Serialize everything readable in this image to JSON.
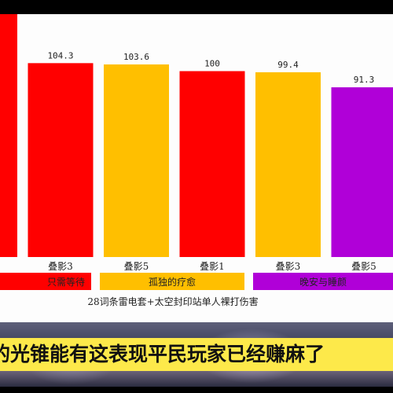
{
  "chart_data": {
    "type": "bar",
    "ylim": [
      0,
      120
    ],
    "bars": [
      {
        "category": "",
        "value": null,
        "color": "#ff0000"
      },
      {
        "category": "叠影3",
        "value": 104.3,
        "color": "#ff0000"
      },
      {
        "category": "叠影5",
        "value": 103.6,
        "color": "#ffbf00"
      },
      {
        "category": "叠影1",
        "value": 100,
        "color": "#ff0000"
      },
      {
        "category": "叠影3",
        "value": 99.4,
        "color": "#ffbf00"
      },
      {
        "category": "叠影5",
        "value": 91.3,
        "color": "#b000d8"
      }
    ],
    "groups": [
      {
        "label": "只需等待",
        "color": "#ff0000"
      },
      {
        "label": "孤独的疗愈",
        "color": "#ffbf00"
      },
      {
        "label": "晚安与睡颜",
        "color": "#b000d8"
      }
    ],
    "footnote": "28词条雷电套+太空封印站单人裸打伤害"
  },
  "subtitle": "的光锥能有这表现平民玩家已经赚麻了"
}
